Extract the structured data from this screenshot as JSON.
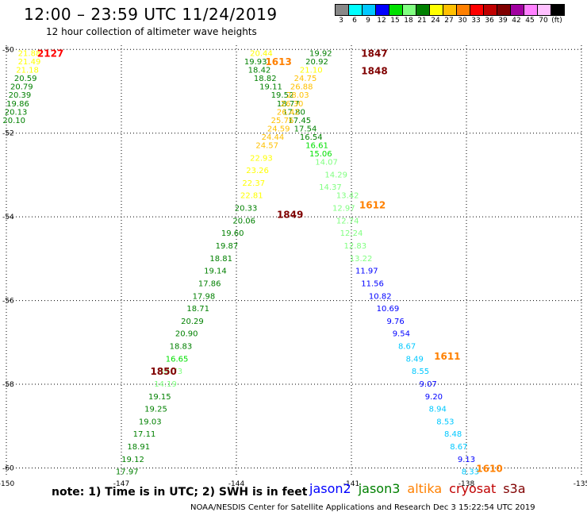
{
  "header": {
    "title": "12:00 – 23:59 UTC 11/24/2019",
    "subtitle": "12 hour collection of altimeter wave heights"
  },
  "colorbar": {
    "colors": [
      "#888888",
      "#00ffff",
      "#00c8ff",
      "#0000ff",
      "#00e000",
      "#80ff80",
      "#008000",
      "#ffff00",
      "#ffc000",
      "#ff8000",
      "#ff0000",
      "#c00000",
      "#800000",
      "#a000a0",
      "#ff80ff",
      "#ffc0ff",
      "#000000"
    ],
    "labels": [
      "3",
      "6",
      "9",
      "12",
      "15",
      "18",
      "21",
      "24",
      "27",
      "30",
      "33",
      "36",
      "39",
      "42",
      "45",
      "70",
      "(ft)"
    ]
  },
  "footer": {
    "note": "note: 1) Time is in UTC; 2) SWH is in feet",
    "credit": "NOAA/NESDIS Center for Satellite Applications and Research   Dec  3 15:22:54 UTC 2019"
  },
  "legend": [
    {
      "name": "jason2",
      "color": "#0000ff"
    },
    {
      "name": "jason3",
      "color": "#008000"
    },
    {
      "name": "altika",
      "color": "#ff8000"
    },
    {
      "name": "cryosat",
      "color": "#c00000"
    },
    {
      "name": "s3a",
      "color": "#800000"
    }
  ],
  "chart_data": {
    "type": "scatter",
    "xlim": [
      -150,
      -135
    ],
    "ylim": [
      -60.2,
      -49.9
    ],
    "xticks": [
      "-150",
      "-147",
      "-144",
      "-141",
      "-138",
      "-135"
    ],
    "yticks": [
      "-50",
      "-52",
      "-54",
      "-56",
      "-58",
      "-60"
    ],
    "xtick_values": [
      -150,
      -147,
      -144,
      -141,
      -138,
      -135
    ],
    "ytick_values": [
      -50,
      -52,
      -54,
      -56,
      -58,
      -60
    ],
    "grid": true,
    "time_labels": [
      {
        "text": "2127",
        "x": -148.85,
        "y": -50.08,
        "color": "#ff0000"
      },
      {
        "text": "1847",
        "x": -140.4,
        "y": -50.08,
        "color": "#800000"
      },
      {
        "text": "1613",
        "x": -142.9,
        "y": -50.28,
        "color": "#ff8000"
      },
      {
        "text": "1848",
        "x": -140.4,
        "y": -50.5,
        "color": "#800000"
      },
      {
        "text": "1612",
        "x": -140.45,
        "y": -53.7,
        "color": "#ff8000"
      },
      {
        "text": "1849",
        "x": -142.6,
        "y": -53.93,
        "color": "#800000"
      },
      {
        "text": "1611",
        "x": -138.5,
        "y": -57.32,
        "color": "#ff8000"
      },
      {
        "text": "1850",
        "x": -145.9,
        "y": -57.68,
        "color": "#800000"
      },
      {
        "text": "1610",
        "x": -137.4,
        "y": -60.0,
        "color": "#ff8000"
      }
    ],
    "series": [
      {
        "points": [
          {
            "x": -149.4,
            "y": -50.08,
            "v": "21.88",
            "c": "#ffff00"
          },
          {
            "x": -149.4,
            "y": -50.28,
            "v": "21.49",
            "c": "#ffff00"
          },
          {
            "x": -149.45,
            "y": -50.48,
            "v": "21.18",
            "c": "#ffff00"
          },
          {
            "x": -149.5,
            "y": -50.68,
            "v": "20.59",
            "c": "#008000"
          },
          {
            "x": -149.6,
            "y": -50.88,
            "v": "20.79",
            "c": "#008000"
          },
          {
            "x": -149.65,
            "y": -51.08,
            "v": "20.39",
            "c": "#008000"
          },
          {
            "x": -149.7,
            "y": -51.28,
            "v": "19.86",
            "c": "#008000"
          },
          {
            "x": -149.75,
            "y": -51.48,
            "v": "20.13",
            "c": "#008000"
          },
          {
            "x": -149.8,
            "y": -51.68,
            "v": "20.10",
            "c": "#008000"
          }
        ]
      },
      {
        "points": [
          {
            "x": -143.35,
            "y": -50.08,
            "v": "20.44",
            "c": "#ffff00"
          },
          {
            "x": -143.5,
            "y": -50.28,
            "v": "19.93",
            "c": "#008000"
          },
          {
            "x": -143.4,
            "y": -50.48,
            "v": "18.42",
            "c": "#008000"
          },
          {
            "x": -143.25,
            "y": -50.68,
            "v": "18.82",
            "c": "#008000"
          },
          {
            "x": -143.1,
            "y": -50.88,
            "v": "19.11",
            "c": "#008000"
          },
          {
            "x": -142.8,
            "y": -51.08,
            "v": "19.52",
            "c": "#008000"
          },
          {
            "x": -142.65,
            "y": -51.28,
            "v": "18.77",
            "c": "#008000"
          },
          {
            "x": -142.5,
            "y": -51.48,
            "v": "17.80",
            "c": "#008000"
          },
          {
            "x": -142.35,
            "y": -51.68,
            "v": "17.45",
            "c": "#008000"
          },
          {
            "x": -142.2,
            "y": -51.88,
            "v": "17.54",
            "c": "#008000"
          },
          {
            "x": -142.05,
            "y": -52.08,
            "v": "16.54",
            "c": "#008000"
          },
          {
            "x": -141.9,
            "y": -52.28,
            "v": "16.61",
            "c": "#00e000"
          },
          {
            "x": -141.8,
            "y": -52.48,
            "v": "15.06",
            "c": "#00e000"
          },
          {
            "x": -141.65,
            "y": -52.68,
            "v": "14.07",
            "c": "#80ff80"
          },
          {
            "x": -141.4,
            "y": -52.98,
            "v": "14.29",
            "c": "#80ff80"
          },
          {
            "x": -141.55,
            "y": -53.28,
            "v": "14.37",
            "c": "#80ff80"
          },
          {
            "x": -141.1,
            "y": -53.48,
            "v": "13.42",
            "c": "#80ff80"
          },
          {
            "x": -141.2,
            "y": -53.78,
            "v": "12.97",
            "c": "#80ff80"
          },
          {
            "x": -141.1,
            "y": -54.08,
            "v": "12.74",
            "c": "#80ff80"
          },
          {
            "x": -141.0,
            "y": -54.38,
            "v": "12.24",
            "c": "#80ff80"
          },
          {
            "x": -140.9,
            "y": -54.68,
            "v": "12.83",
            "c": "#80ff80"
          },
          {
            "x": -140.75,
            "y": -54.98,
            "v": "13.22",
            "c": "#80ff80"
          },
          {
            "x": -140.6,
            "y": -55.28,
            "v": "11.97",
            "c": "#0000ff"
          },
          {
            "x": -140.45,
            "y": -55.58,
            "v": "11.56",
            "c": "#0000ff"
          },
          {
            "x": -140.25,
            "y": -55.88,
            "v": "10.82",
            "c": "#0000ff"
          },
          {
            "x": -140.05,
            "y": -56.18,
            "v": "10.69",
            "c": "#0000ff"
          },
          {
            "x": -139.85,
            "y": -56.48,
            "v": "9.76",
            "c": "#0000ff"
          },
          {
            "x": -139.7,
            "y": -56.78,
            "v": "9.54",
            "c": "#0000ff"
          },
          {
            "x": -139.55,
            "y": -57.08,
            "v": "8.67",
            "c": "#00c8ff"
          },
          {
            "x": -139.35,
            "y": -57.38,
            "v": "8.49",
            "c": "#00c8ff"
          },
          {
            "x": -139.2,
            "y": -57.68,
            "v": "8.55",
            "c": "#00c8ff"
          },
          {
            "x": -139.0,
            "y": -57.98,
            "v": "9.07",
            "c": "#0000ff"
          },
          {
            "x": -138.85,
            "y": -58.28,
            "v": "9.20",
            "c": "#0000ff"
          },
          {
            "x": -138.75,
            "y": -58.58,
            "v": "8.94",
            "c": "#00c8ff"
          },
          {
            "x": -138.55,
            "y": -58.88,
            "v": "8.53",
            "c": "#00c8ff"
          },
          {
            "x": -138.35,
            "y": -59.18,
            "v": "8.48",
            "c": "#00c8ff"
          },
          {
            "x": -138.2,
            "y": -59.48,
            "v": "8.67",
            "c": "#00c8ff"
          },
          {
            "x": -138.0,
            "y": -59.78,
            "v": "9.13",
            "c": "#0000ff"
          },
          {
            "x": -137.9,
            "y": -60.08,
            "v": "8.33",
            "c": "#00c8ff"
          }
        ]
      },
      {
        "points": [
          {
            "x": -141.8,
            "y": -50.08,
            "v": "19.92",
            "c": "#008000"
          },
          {
            "x": -141.9,
            "y": -50.28,
            "v": "20.92",
            "c": "#008000"
          },
          {
            "x": -142.05,
            "y": -50.48,
            "v": "21.10",
            "c": "#ffff00"
          },
          {
            "x": -142.2,
            "y": -50.68,
            "v": "24.75",
            "c": "#ffc000"
          },
          {
            "x": -142.3,
            "y": -50.88,
            "v": "26.88",
            "c": "#ffc000"
          },
          {
            "x": -142.4,
            "y": -51.08,
            "v": "28.03",
            "c": "#ffc000"
          },
          {
            "x": -142.55,
            "y": -51.28,
            "v": "26.30",
            "c": "#ffc000"
          },
          {
            "x": -142.65,
            "y": -51.48,
            "v": "26.42",
            "c": "#ffc000"
          },
          {
            "x": -142.8,
            "y": -51.68,
            "v": "25.76",
            "c": "#ffc000"
          },
          {
            "x": -142.9,
            "y": -51.88,
            "v": "24.59",
            "c": "#ffc000"
          },
          {
            "x": -143.05,
            "y": -52.08,
            "v": "24.44",
            "c": "#ffc000"
          },
          {
            "x": -143.2,
            "y": -52.28,
            "v": "24.57",
            "c": "#ffc000"
          },
          {
            "x": -143.35,
            "y": -52.58,
            "v": "22.93",
            "c": "#ffff00"
          },
          {
            "x": -143.45,
            "y": -52.88,
            "v": "23.26",
            "c": "#ffff00"
          },
          {
            "x": -143.55,
            "y": -53.18,
            "v": "22.37",
            "c": "#ffff00"
          },
          {
            "x": -143.6,
            "y": -53.48,
            "v": "22.81",
            "c": "#ffff00"
          },
          {
            "x": -143.75,
            "y": -53.78,
            "v": "20.33",
            "c": "#008000"
          },
          {
            "x": -143.8,
            "y": -54.08,
            "v": "20.06",
            "c": "#008000"
          },
          {
            "x": -144.1,
            "y": -54.38,
            "v": "19.60",
            "c": "#008000"
          },
          {
            "x": -144.25,
            "y": -54.68,
            "v": "19.87",
            "c": "#008000"
          },
          {
            "x": -144.4,
            "y": -54.98,
            "v": "18.81",
            "c": "#008000"
          },
          {
            "x": -144.55,
            "y": -55.28,
            "v": "19.14",
            "c": "#008000"
          },
          {
            "x": -144.7,
            "y": -55.58,
            "v": "17.86",
            "c": "#008000"
          },
          {
            "x": -144.85,
            "y": -55.88,
            "v": "17.98",
            "c": "#008000"
          },
          {
            "x": -145.0,
            "y": -56.18,
            "v": "18.71",
            "c": "#008000"
          },
          {
            "x": -145.15,
            "y": -56.48,
            "v": "20.29",
            "c": "#008000"
          },
          {
            "x": -145.3,
            "y": -56.78,
            "v": "20.90",
            "c": "#008000"
          },
          {
            "x": -145.45,
            "y": -57.08,
            "v": "18.83",
            "c": "#008000"
          },
          {
            "x": -145.55,
            "y": -57.38,
            "v": "16.65",
            "c": "#00e000"
          },
          {
            "x": -145.7,
            "y": -57.68,
            "v": "14.73",
            "c": "#80ff80"
          },
          {
            "x": -145.85,
            "y": -57.98,
            "v": "14.19",
            "c": "#80ff80"
          },
          {
            "x": -146.0,
            "y": -58.28,
            "v": "19.15",
            "c": "#008000"
          },
          {
            "x": -146.1,
            "y": -58.58,
            "v": "19.25",
            "c": "#008000"
          },
          {
            "x": -146.25,
            "y": -58.88,
            "v": "19.03",
            "c": "#008000"
          },
          {
            "x": -146.4,
            "y": -59.18,
            "v": "17.11",
            "c": "#008000"
          },
          {
            "x": -146.55,
            "y": -59.48,
            "v": "18.91",
            "c": "#008000"
          },
          {
            "x": -146.7,
            "y": -59.78,
            "v": "19.12",
            "c": "#008000"
          },
          {
            "x": -146.85,
            "y": -60.08,
            "v": "17.97",
            "c": "#008000"
          }
        ]
      }
    ]
  }
}
